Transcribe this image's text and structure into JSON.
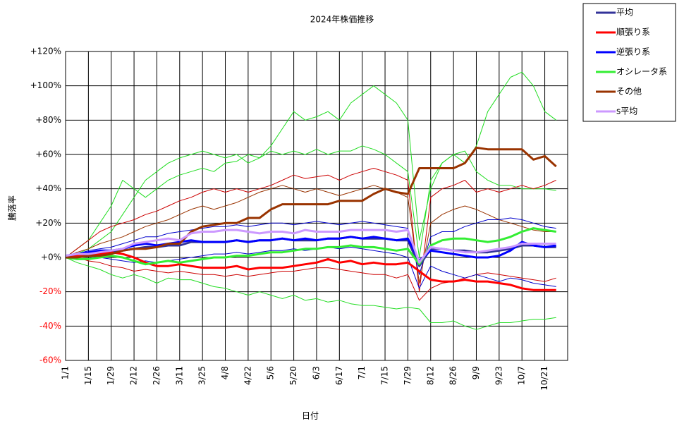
{
  "chart_data": {
    "type": "line",
    "title": "2024年株価推移",
    "y_label": "騰落率",
    "x_label": "日付",
    "categories": [
      "1/1",
      null,
      "1/15",
      null,
      "1/29",
      null,
      "2/12",
      null,
      "2/26",
      null,
      "3/11",
      null,
      "3/25",
      null,
      "4/8",
      null,
      "4/22",
      null,
      "5/6",
      null,
      "5/20",
      null,
      "6/3",
      null,
      "6/17",
      null,
      "7/1",
      null,
      "7/15",
      null,
      "7/29",
      null,
      "8/12",
      null,
      "8/26",
      null,
      "9/9",
      null,
      "9/23",
      null,
      "10/7",
      null,
      "10/21",
      null,
      null
    ],
    "ylim": [
      -60,
      120
    ],
    "yticks": [
      {
        "value": -60,
        "label": "-60%"
      },
      {
        "value": -40,
        "label": "-40%"
      },
      {
        "value": -20,
        "label": "-20%"
      },
      {
        "value": 0,
        "label": "+0%"
      },
      {
        "value": 20,
        "label": "+20%"
      },
      {
        "value": 40,
        "label": "+40%"
      },
      {
        "value": 60,
        "label": "+60%"
      },
      {
        "value": 80,
        "label": "+80%"
      },
      {
        "value": 100,
        "label": "+100%"
      },
      {
        "value": 120,
        "label": "+120%"
      }
    ],
    "grid": true,
    "legend": "top-right",
    "series": [
      {
        "name": "平均",
        "color": "#333399",
        "values": [
          0,
          1,
          2,
          3,
          3,
          4,
          5,
          6,
          6,
          7,
          7,
          9,
          9,
          9,
          9,
          10,
          9,
          10,
          10,
          11,
          10,
          10,
          10,
          11,
          11,
          12,
          11,
          11,
          11,
          10,
          10,
          -5,
          5,
          5,
          4,
          4,
          3,
          3,
          4,
          5,
          7,
          7,
          6,
          6,
          null
        ]
      },
      {
        "name": "順張り系",
        "color": "#ff0000",
        "values": [
          0,
          1,
          2,
          2,
          3,
          2,
          0,
          -3,
          -5,
          -5,
          -4,
          -5,
          -6,
          -6,
          -6,
          -5,
          -7,
          -6,
          -6,
          -6,
          -5,
          -4,
          -3,
          -1,
          -3,
          -2,
          -4,
          -3,
          -4,
          -4,
          -3,
          -8,
          -13,
          -14,
          -14,
          -13,
          -14,
          -14,
          -15,
          -16,
          -18,
          -19,
          -19,
          -19,
          null
        ]
      },
      {
        "name": "逆張り系",
        "color": "#0000ff",
        "values": [
          1,
          2,
          3,
          4,
          4,
          5,
          7,
          8,
          7,
          8,
          9,
          10,
          9,
          9,
          9,
          10,
          9,
          10,
          10,
          11,
          10,
          11,
          10,
          11,
          11,
          12,
          11,
          12,
          11,
          10,
          11,
          -2,
          4,
          3,
          2,
          1,
          0,
          0,
          1,
          4,
          9,
          7,
          6,
          7,
          null
        ]
      },
      {
        "name": "オシレータ系",
        "color": "#33ee33",
        "values": [
          0,
          -1,
          -1,
          0,
          1,
          0,
          -2,
          -4,
          -3,
          -2,
          -3,
          -2,
          -1,
          0,
          0,
          1,
          1,
          2,
          3,
          3,
          4,
          5,
          5,
          6,
          6,
          7,
          6,
          6,
          5,
          4,
          5,
          -4,
          7,
          10,
          11,
          11,
          10,
          9,
          10,
          12,
          15,
          17,
          16,
          15,
          null
        ]
      },
      {
        "name": "その他",
        "color": "#993300",
        "values": [
          0,
          0,
          1,
          1,
          2,
          4,
          5,
          5,
          6,
          8,
          8,
          15,
          18,
          19,
          20,
          20,
          23,
          23,
          28,
          31,
          31,
          31,
          31,
          31,
          33,
          33,
          33,
          37,
          40,
          38,
          37,
          52,
          52,
          52,
          52,
          55,
          64,
          63,
          63,
          63,
          63,
          57,
          59,
          53,
          null
        ]
      },
      {
        "name": "s平均",
        "color": "#cc99ff",
        "values": [
          1,
          2,
          2,
          3,
          4,
          5,
          8,
          9,
          10,
          11,
          10,
          14,
          15,
          15,
          16,
          16,
          15,
          14,
          15,
          15,
          14,
          16,
          15,
          15,
          15,
          16,
          16,
          16,
          16,
          15,
          16,
          -3,
          6,
          5,
          4,
          3,
          3,
          4,
          5,
          6,
          8,
          8,
          8,
          8,
          null
        ]
      }
    ],
    "component_lines": [
      {
        "color": "#22dd22",
        "values": [
          0,
          2,
          5,
          10,
          15,
          25,
          35,
          45,
          50,
          55,
          58,
          60,
          62,
          60,
          58,
          60,
          55,
          58,
          65,
          75,
          85,
          80,
          82,
          85,
          80,
          90,
          95,
          100,
          95,
          90,
          80,
          10,
          40,
          55,
          60,
          55,
          65,
          85,
          95,
          105,
          108,
          100,
          85,
          80,
          null
        ]
      },
      {
        "color": "#22dd22",
        "values": [
          0,
          -3,
          -5,
          -7,
          -10,
          -12,
          -10,
          -12,
          -15,
          -12,
          -13,
          -13,
          -15,
          -17,
          -18,
          -20,
          -22,
          -20,
          -22,
          -24,
          -22,
          -25,
          -24,
          -26,
          -25,
          -27,
          -28,
          -28,
          -29,
          -30,
          -29,
          -30,
          -38,
          -38,
          -37,
          -40,
          -42,
          -40,
          -38,
          -38,
          -37,
          -36,
          -36,
          -35,
          null
        ]
      },
      {
        "color": "#22dd22",
        "values": [
          0,
          5,
          10,
          20,
          30,
          45,
          40,
          35,
          40,
          45,
          48,
          50,
          52,
          50,
          55,
          56,
          60,
          58,
          62,
          60,
          62,
          60,
          63,
          60,
          62,
          62,
          65,
          63,
          60,
          55,
          50,
          0,
          45,
          55,
          60,
          62,
          50,
          45,
          42,
          42,
          40,
          40,
          40,
          39,
          null
        ]
      },
      {
        "color": "#cc0000",
        "values": [
          0,
          5,
          10,
          15,
          18,
          20,
          22,
          25,
          27,
          30,
          33,
          35,
          38,
          40,
          38,
          40,
          38,
          40,
          42,
          45,
          48,
          46,
          47,
          48,
          45,
          48,
          50,
          52,
          50,
          48,
          45,
          -20,
          35,
          40,
          42,
          45,
          38,
          40,
          38,
          40,
          42,
          40,
          42,
          45,
          null
        ]
      },
      {
        "color": "#cc0000",
        "values": [
          0,
          0,
          -2,
          -3,
          -5,
          -6,
          -8,
          -7,
          -8,
          -9,
          -8,
          -9,
          -10,
          -10,
          -11,
          -10,
          -11,
          -10,
          -9,
          -8,
          -8,
          -7,
          -6,
          -6,
          -7,
          -8,
          -9,
          -10,
          -10,
          -12,
          -10,
          -25,
          -18,
          -15,
          -14,
          -12,
          -10,
          -9,
          -10,
          -11,
          -12,
          -13,
          -14,
          -12,
          null
        ]
      },
      {
        "color": "#993300",
        "values": [
          0,
          3,
          5,
          8,
          10,
          12,
          15,
          18,
          20,
          22,
          25,
          28,
          30,
          28,
          30,
          32,
          35,
          38,
          40,
          42,
          40,
          38,
          40,
          38,
          36,
          38,
          40,
          42,
          40,
          38,
          35,
          -15,
          20,
          25,
          28,
          30,
          28,
          25,
          22,
          20,
          18,
          16,
          15,
          15,
          null
        ]
      },
      {
        "color": "#0000cc",
        "values": [
          0,
          2,
          4,
          5,
          6,
          8,
          10,
          12,
          12,
          14,
          15,
          16,
          17,
          18,
          18,
          19,
          18,
          19,
          20,
          20,
          19,
          20,
          21,
          20,
          19,
          20,
          21,
          20,
          19,
          18,
          17,
          -10,
          12,
          15,
          15,
          18,
          20,
          22,
          22,
          23,
          22,
          20,
          18,
          17,
          null
        ]
      },
      {
        "color": "#0000cc",
        "values": [
          0,
          0,
          1,
          0,
          -1,
          -2,
          -3,
          -2,
          -3,
          -2,
          -1,
          0,
          1,
          2,
          2,
          3,
          2,
          3,
          4,
          4,
          5,
          4,
          5,
          6,
          5,
          6,
          5,
          4,
          3,
          2,
          0,
          -18,
          -5,
          -8,
          -10,
          -12,
          -10,
          -12,
          -14,
          -12,
          -13,
          -15,
          -16,
          -17,
          null
        ]
      }
    ]
  }
}
